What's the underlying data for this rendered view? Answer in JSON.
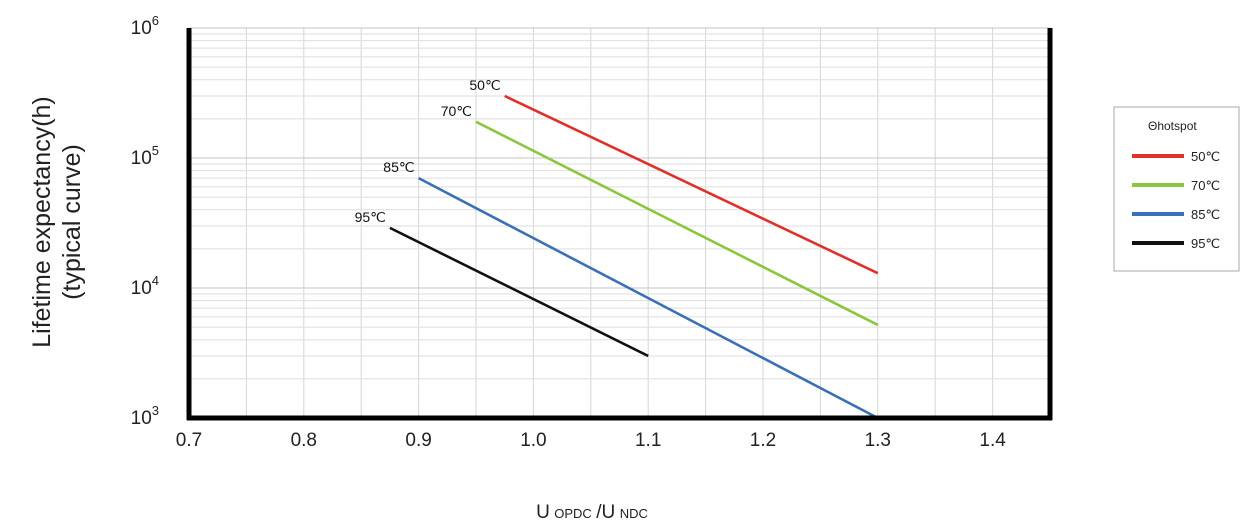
{
  "chart_data": {
    "type": "line",
    "ylabel_line1": "Lifetime expectancy(h)",
    "ylabel_line2": "(typical curve)",
    "xlabel_main1": "U",
    "xlabel_sub1": "OPDC",
    "xlabel_sep": "/U",
    "xlabel_sub2": "NDC",
    "xlim": [
      0.7,
      1.45
    ],
    "ylim": [
      1000,
      1000000
    ],
    "y_scale": "log",
    "grid": true,
    "x_ticks": [
      {
        "value": 0.7,
        "label": "0.7"
      },
      {
        "value": 0.8,
        "label": "0.8"
      },
      {
        "value": 0.9,
        "label": "0.9"
      },
      {
        "value": 1.0,
        "label": "1.0"
      },
      {
        "value": 1.1,
        "label": "1.1"
      },
      {
        "value": 1.2,
        "label": "1.2"
      },
      {
        "value": 1.3,
        "label": "1.3"
      },
      {
        "value": 1.4,
        "label": "1.4"
      }
    ],
    "y_ticks": [
      {
        "value": 1000,
        "base": "10",
        "exp": "3"
      },
      {
        "value": 10000,
        "base": "10",
        "exp": "4"
      },
      {
        "value": 100000,
        "base": "10",
        "exp": "5"
      },
      {
        "value": 1000000,
        "base": "10",
        "exp": "6"
      }
    ],
    "legend": {
      "title": "Θhotspot",
      "position": "right"
    },
    "series": [
      {
        "name": "50℃",
        "label": "50℃",
        "color": "#e0302a",
        "x": [
          0.975,
          1.3
        ],
        "y": [
          300000,
          13000
        ]
      },
      {
        "name": "70℃",
        "label": "70℃",
        "color": "#8cc63f",
        "x": [
          0.95,
          1.3
        ],
        "y": [
          190000,
          5200
        ]
      },
      {
        "name": "85℃",
        "label": "85℃",
        "color": "#3b6fb6",
        "x": [
          0.9,
          1.3
        ],
        "y": [
          70000,
          1000
        ]
      },
      {
        "name": "95℃",
        "label": "95℃",
        "color": "#111111",
        "x": [
          0.875,
          1.1
        ],
        "y": [
          29000,
          3000
        ]
      }
    ]
  }
}
